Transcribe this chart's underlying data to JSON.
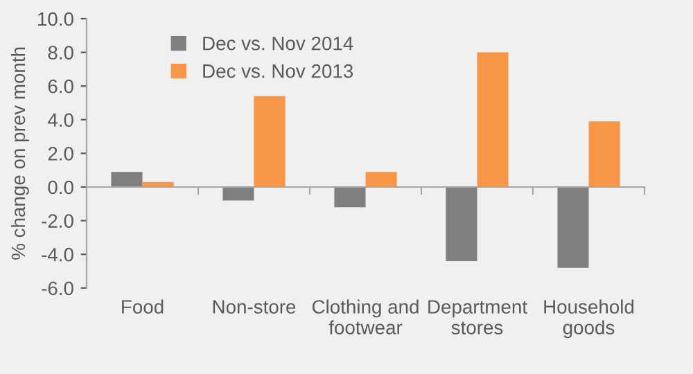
{
  "chart_data": {
    "type": "bar",
    "ylabel": "% change on prev month",
    "categories": [
      "Food",
      "Non-store",
      "Clothing and\nfootwear",
      "Department\nstores",
      "Household\ngoods"
    ],
    "series": [
      {
        "name": "Dec vs. Nov 2014",
        "color": "#7f7f7f",
        "values": [
          0.9,
          -0.8,
          -1.2,
          -4.4,
          -4.8
        ]
      },
      {
        "name": "Dec vs. Nov 2013",
        "color": "#f79646",
        "values": [
          0.3,
          5.4,
          0.9,
          8.0,
          3.9
        ]
      }
    ],
    "ylim": [
      -6,
      10
    ],
    "yticks": [
      {
        "value": -6,
        "label": "-6.0"
      },
      {
        "value": -4,
        "label": "-4.0"
      },
      {
        "value": -2,
        "label": "-2.0"
      },
      {
        "value": 0,
        "label": "0.0"
      },
      {
        "value": 2,
        "label": "2.0"
      },
      {
        "value": 4,
        "label": "4.0"
      },
      {
        "value": 6,
        "label": "6.0"
      },
      {
        "value": 8,
        "label": "8.0"
      },
      {
        "value": 10,
        "label": "10.0"
      }
    ],
    "legend": "top left"
  }
}
